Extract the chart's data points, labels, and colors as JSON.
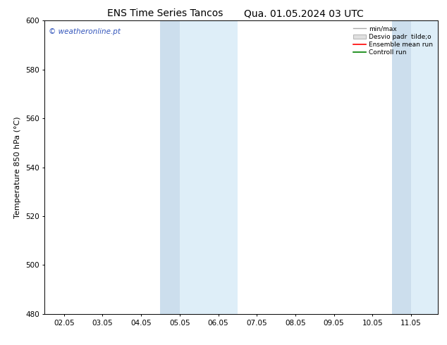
{
  "title_left": "ENS Time Series Tancos",
  "title_right": "Qua. 01.05.2024 03 UTC",
  "ylabel": "Temperature 850 hPa (°C)",
  "ylim": [
    480,
    600
  ],
  "yticks": [
    480,
    500,
    520,
    540,
    560,
    580,
    600
  ],
  "xtick_labels": [
    "02.05",
    "03.05",
    "04.05",
    "05.05",
    "06.05",
    "07.05",
    "08.05",
    "09.05",
    "10.05",
    "11.05"
  ],
  "xtick_positions": [
    1,
    2,
    3,
    4,
    5,
    6,
    7,
    8,
    9,
    10
  ],
  "xlim": [
    0.5,
    10.7
  ],
  "shade_dark": [
    {
      "xmin": 3.5,
      "xmax": 4.0,
      "color": "#ccdeed"
    },
    {
      "xmin": 9.5,
      "xmax": 10.0,
      "color": "#ccdeed"
    }
  ],
  "shade_light": [
    {
      "xmin": 3.5,
      "xmax": 5.5,
      "color": "#deeef8"
    },
    {
      "xmin": 9.5,
      "xmax": 10.7,
      "color": "#deeef8"
    }
  ],
  "legend_labels": [
    "min/max",
    "Desvio padr  tilde;o",
    "Ensemble mean run",
    "Controll run"
  ],
  "legend_colors": [
    "#aaaaaa",
    "#cccccc",
    "#ff0000",
    "#008000"
  ],
  "watermark": "© weatheronline.pt",
  "watermark_color": "#3355bb",
  "bg_color": "#ffffff",
  "plot_bg_color": "#ffffff",
  "title_fontsize": 10,
  "axis_fontsize": 8,
  "tick_fontsize": 7.5
}
